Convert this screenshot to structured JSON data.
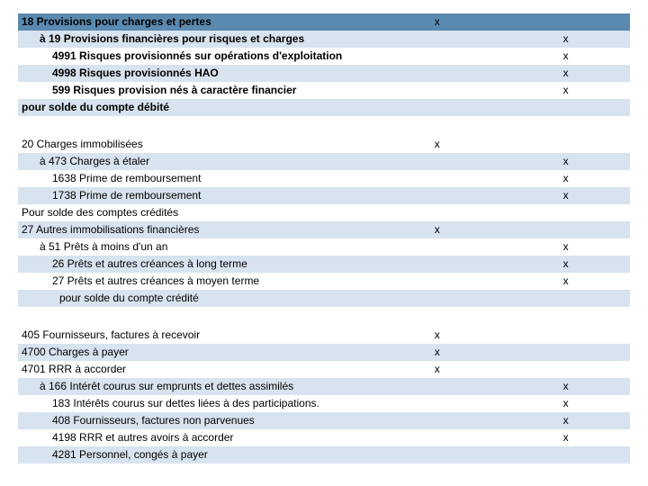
{
  "colors": {
    "header_bg": "#5a8ab0",
    "row_alt_bg": "#d7e3ee",
    "row_plain_bg": "#ffffff",
    "text": "#000000"
  },
  "typography": {
    "font_family": "Arial",
    "font_size_pt": 9
  },
  "mark": "x",
  "sections": [
    {
      "header": {
        "label": "18 Provisions pour charges et pertes",
        "colA": "x",
        "colB": ""
      },
      "rows": [
        {
          "label": "à 19 Provisions financières pour risques et charges",
          "indent": 1,
          "bold": true,
          "colA": "",
          "colB": "x",
          "alt": true
        },
        {
          "label": "4991 Risques provisionnés sur opérations d'exploitation",
          "indent": 2,
          "bold": true,
          "colA": "",
          "colB": "x",
          "alt": false
        },
        {
          "label": "4998 Risques provisionnés HAO",
          "indent": 2,
          "bold": true,
          "colA": "",
          "colB": "x",
          "alt": true
        },
        {
          "label": "599 Risques provision nés à caractère financier",
          "indent": 2,
          "bold": true,
          "colA": "",
          "colB": "x",
          "alt": false
        },
        {
          "label": "pour solde du compte débité",
          "indent": 0,
          "bold": true,
          "colA": "",
          "colB": "",
          "alt": true
        }
      ]
    },
    {
      "rows": [
        {
          "label": "20 Charges immobilisées",
          "indent": 0,
          "bold": false,
          "colA": "x",
          "colB": "",
          "alt": false
        },
        {
          "label": "à 473 Charges à étaler",
          "indent": 1,
          "bold": false,
          "colA": "",
          "colB": "x",
          "alt": true
        },
        {
          "label": "1638 Prime de remboursement",
          "indent": 2,
          "bold": false,
          "colA": "",
          "colB": "x",
          "alt": false
        },
        {
          "label": "1738 Prime de remboursement",
          "indent": 2,
          "bold": false,
          "colA": "",
          "colB": "x",
          "alt": true
        },
        {
          "label": "Pour solde des comptes crédités",
          "indent": 0,
          "bold": false,
          "colA": "",
          "colB": "",
          "alt": false
        },
        {
          "label": "27 Autres immobilisations financières",
          "indent": 0,
          "bold": false,
          "colA": "x",
          "colB": "",
          "alt": true
        },
        {
          "label": "à 51 Prêts à moins d'un an",
          "indent": 1,
          "bold": false,
          "colA": "",
          "colB": "x",
          "alt": false
        },
        {
          "label": "26 Prêts et autres créances à long terme",
          "indent": 2,
          "bold": false,
          "colA": "",
          "colB": "x",
          "alt": true
        },
        {
          "label": "27 Prêts et autres créances à moyen terme",
          "indent": 2,
          "bold": false,
          "colA": "",
          "colB": "x",
          "alt": false
        },
        {
          "label": "pour solde du compte crédité",
          "indent": 3,
          "bold": false,
          "colA": "",
          "colB": "",
          "alt": true
        }
      ]
    },
    {
      "rows": [
        {
          "label": "405 Fournisseurs, factures à recevoir",
          "indent": 0,
          "bold": false,
          "colA": "x",
          "colB": "",
          "alt": false
        },
        {
          "label": "4700 Charges à payer",
          "indent": 0,
          "bold": false,
          "colA": "x",
          "colB": "",
          "alt": true
        },
        {
          "label": "4701 RRR à accorder",
          "indent": 0,
          "bold": false,
          "colA": "x",
          "colB": "",
          "alt": false
        },
        {
          "label": "à 166 Intérêt courus sur emprunts et dettes assimilés",
          "indent": 1,
          "bold": false,
          "colA": "",
          "colB": "x",
          "alt": true
        },
        {
          "label": "183 Intérêts courus sur dettes liées à des participations.",
          "indent": 2,
          "bold": false,
          "colA": "",
          "colB": "x",
          "alt": false
        },
        {
          "label": "408 Fournisseurs, factures non parvenues",
          "indent": 2,
          "bold": false,
          "colA": "",
          "colB": "x",
          "alt": true
        },
        {
          "label": "4198 RRR et autres avoirs à accorder",
          "indent": 2,
          "bold": false,
          "colA": "",
          "colB": "x",
          "alt": false
        },
        {
          "label": "4281 Personnel, congés à payer",
          "indent": 2,
          "bold": false,
          "colA": "",
          "colB": "",
          "alt": true
        }
      ]
    }
  ]
}
